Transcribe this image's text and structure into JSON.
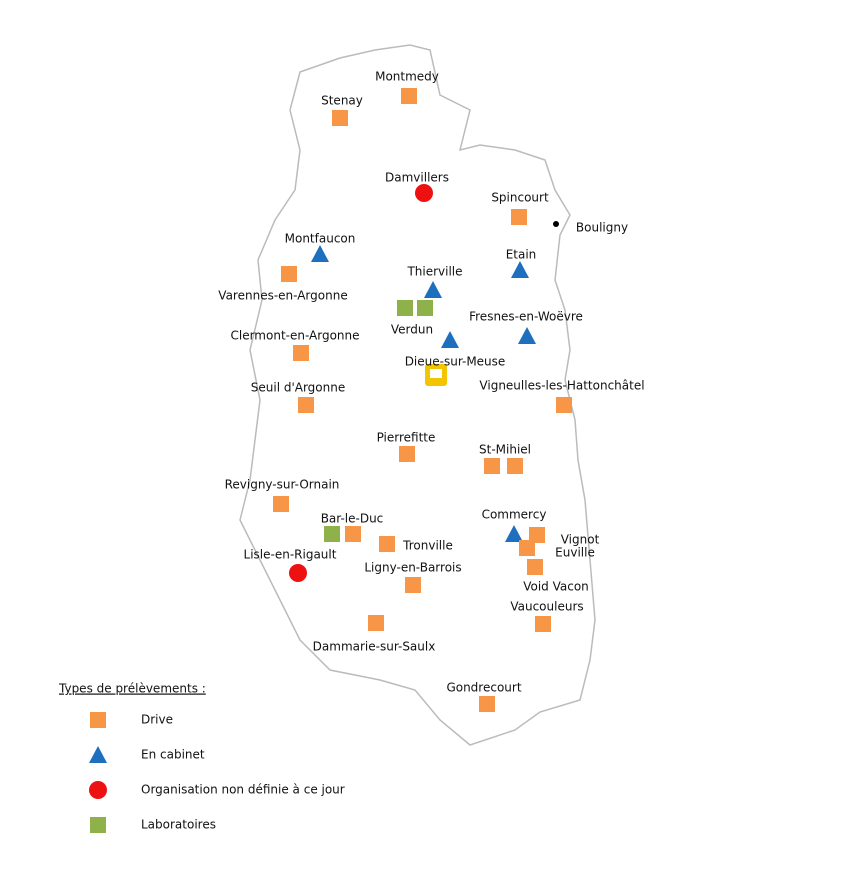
{
  "places": [
    {
      "label": "Montmedy"
    },
    {
      "label": "Stenay"
    },
    {
      "label": "Damvillers"
    },
    {
      "label": "Spincourt"
    },
    {
      "label": "Bouligny"
    },
    {
      "label": "Montfaucon"
    },
    {
      "label": "Etain"
    },
    {
      "label": "Thierville"
    },
    {
      "label": "Varennes-en-Argonne"
    },
    {
      "label": "Verdun"
    },
    {
      "label": "Fresnes-en-Woëvre"
    },
    {
      "label": "Clermont-en-Argonne"
    },
    {
      "label": "Dieue-sur-Meuse"
    },
    {
      "label": "Vigneulles-les-Hattonchâtel"
    },
    {
      "label": "Seuil d'Argonne"
    },
    {
      "label": "Pierrefitte"
    },
    {
      "label": "St-Mihiel"
    },
    {
      "label": "Revigny-sur-Ornain"
    },
    {
      "label": "Bar-le-Duc"
    },
    {
      "label": "Commercy"
    },
    {
      "label": "Vignot"
    },
    {
      "label": "Euville"
    },
    {
      "label": "Tronville"
    },
    {
      "label": "Lisle-en-Rigault"
    },
    {
      "label": "Ligny-en-Barrois"
    },
    {
      "label": "Void Vacon"
    },
    {
      "label": "Vaucouleurs"
    },
    {
      "label": "Dammarie-sur-Saulx"
    },
    {
      "label": "Gondrecourt"
    }
  ],
  "legend": {
    "title": "Types de prélèvements :",
    "items": [
      "Drive",
      "En cabinet",
      "Organisation non définie à ce jour",
      "Laboratoires"
    ]
  }
}
